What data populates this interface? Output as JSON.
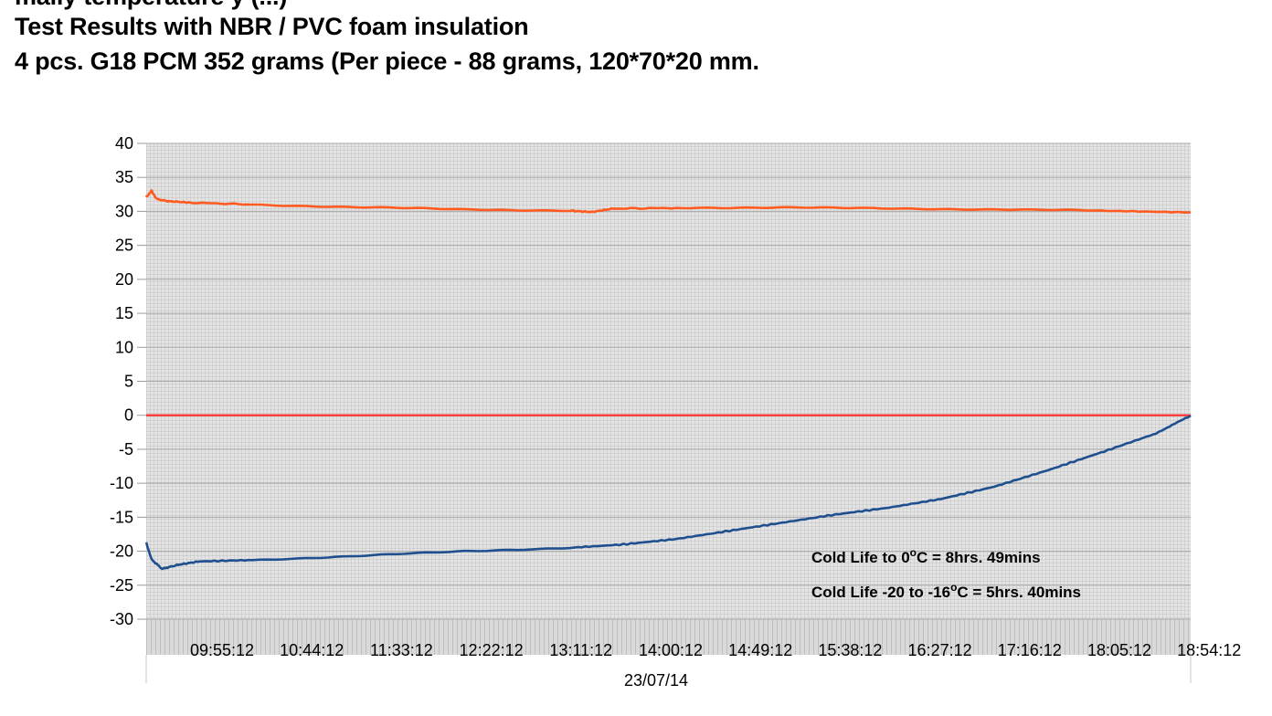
{
  "title_lines": [
    "mally temperature y  (...)",
    "Test Results with NBR / PVC foam insulation",
    "4 pcs. G18 PCM 352 grams (Per piece - 88 grams, 120*70*20 mm."
  ],
  "chart_data": {
    "type": "line",
    "ylim": [
      -30,
      40
    ],
    "yticks": [
      40,
      35,
      30,
      25,
      20,
      15,
      10,
      5,
      0,
      -5,
      -10,
      -15,
      -20,
      -25,
      -30
    ],
    "x_range_hours": [
      0,
      9.85
    ],
    "xtick_labels": [
      "09:55:12",
      "10:44:12",
      "11:33:12",
      "12:22:12",
      "13:11:12",
      "14:00:12",
      "14:49:12",
      "15:38:12",
      "16:27:12",
      "17:16:12",
      "18:05:12",
      "18:54:12"
    ],
    "xaxis_category": "23/07/14",
    "grid": true,
    "colors": {
      "ambient": "#ff5a1f",
      "zero_line": "#ff2a2a",
      "cold": "#1f4f8f",
      "grid": "#b0b0b0",
      "plot_bg": "#e6e6e6"
    },
    "series": [
      {
        "id": "ambient",
        "x": [
          0,
          0.05,
          0.1,
          0.2,
          0.4,
          1,
          2,
          3,
          4,
          4.2,
          4.4,
          5,
          6,
          7,
          8,
          9,
          9.85
        ],
        "y": [
          32.1,
          33,
          31.8,
          31.5,
          31.3,
          31,
          30.6,
          30.3,
          30.1,
          29.9,
          30.4,
          30.5,
          30.6,
          30.4,
          30.3,
          30.1,
          29.8
        ]
      },
      {
        "id": "zero",
        "x": [
          0,
          9.85
        ],
        "y": [
          0,
          0
        ]
      },
      {
        "id": "cold",
        "x": [
          0,
          0.05,
          0.15,
          0.3,
          0.5,
          1,
          2,
          3,
          4,
          4.5,
          5,
          5.5,
          6,
          6.5,
          7,
          7.5,
          8,
          8.5,
          9,
          9.5,
          9.85
        ],
        "y": [
          -18.7,
          -21.2,
          -22.6,
          -22,
          -21.5,
          -21.3,
          -20.7,
          -20,
          -19.5,
          -19,
          -18.2,
          -17,
          -15.8,
          -14.6,
          -13.6,
          -12.3,
          -10.5,
          -8.1,
          -5.5,
          -2.8,
          -0.1
        ]
      }
    ],
    "annotations": [
      "Cold Life to 0°C = 8hrs. 49mins",
      "Cold Life -20 to -16°C = 5hrs. 40mins"
    ]
  }
}
